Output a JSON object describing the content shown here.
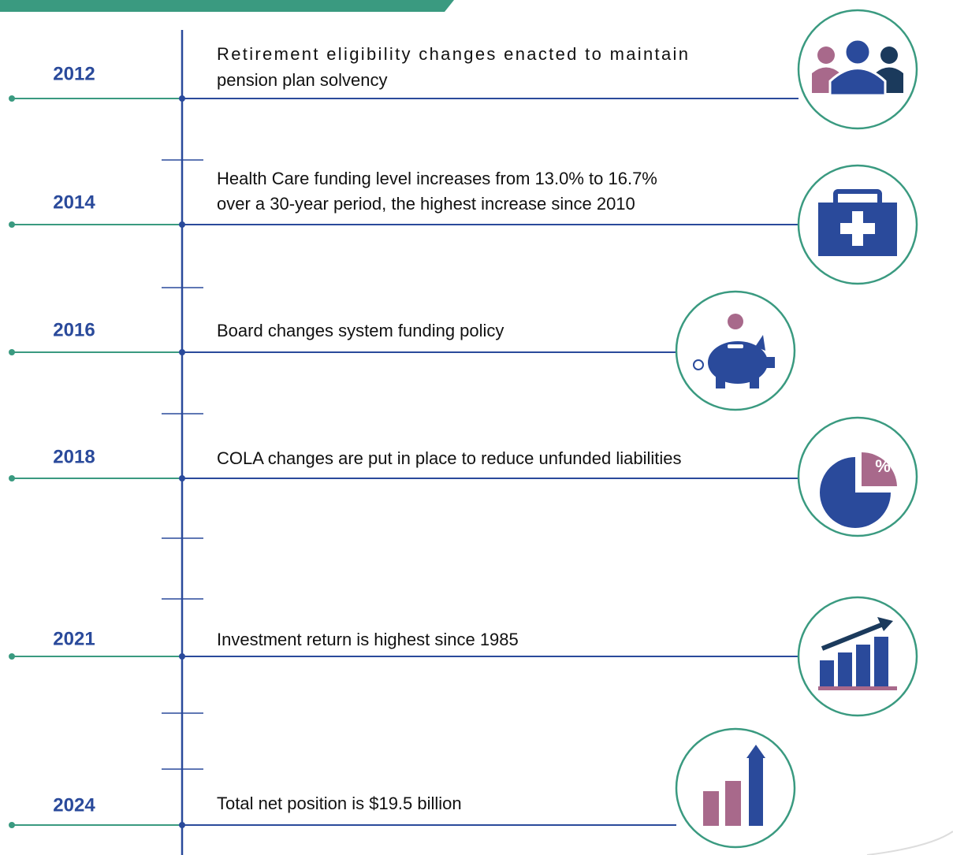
{
  "events": [
    {
      "year": "2012",
      "text_lines": [
        "Retirement eligibility changes enacted to maintain",
        "pension plan solvency"
      ]
    },
    {
      "year": "2014",
      "text_lines": [
        "Health Care funding level increases from 13.0% to 16.7%",
        "over a 30-year period, the highest increase since 2010"
      ]
    },
    {
      "year": "2016",
      "text_lines": [
        "Board changes system funding policy"
      ]
    },
    {
      "year": "2018",
      "text_lines": [
        "COLA changes are put in place to reduce unfunded liabilities"
      ],
      "icon_label": "%"
    },
    {
      "year": "2021",
      "text_lines": [
        "Investment return is highest since 1985"
      ]
    },
    {
      "year": "2024",
      "text_lines": [
        "Total net position is $19.5 billion"
      ]
    }
  ]
}
